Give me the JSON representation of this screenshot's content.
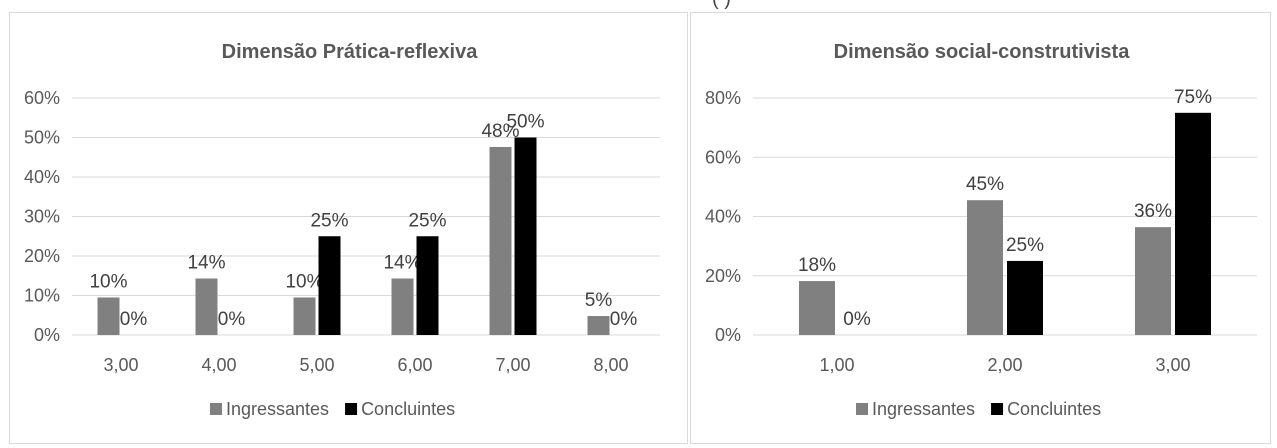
{
  "page": {
    "top_fragment_text": "(                )"
  },
  "colors": {
    "ingressantes": "#808080",
    "concluintes": "#000000",
    "grid": "#d9d9d9",
    "text": "#595959"
  },
  "chart_data": [
    {
      "type": "bar",
      "title": "Dimensão Prática-reflexiva",
      "categories": [
        "3,00",
        "4,00",
        "5,00",
        "6,00",
        "7,00",
        "8,00"
      ],
      "ylim": [
        0,
        60
      ],
      "yticks": [
        "0%",
        "10%",
        "20%",
        "30%",
        "40%",
        "50%",
        "60%"
      ],
      "ytick_values": [
        0,
        10,
        20,
        30,
        40,
        50,
        60
      ],
      "legend_position": "bottom",
      "series": [
        {
          "name": "Ingressantes",
          "values": [
            9.5,
            14.3,
            9.5,
            14.3,
            47.6,
            4.8
          ],
          "labels": [
            "10%",
            "14%",
            "10%",
            "14%",
            "48%",
            "5%"
          ]
        },
        {
          "name": "Concluintes",
          "values": [
            0,
            0,
            25,
            25,
            50,
            0
          ],
          "labels": [
            "0%",
            "0%",
            "25%",
            "25%",
            "50%",
            "0%"
          ]
        }
      ]
    },
    {
      "type": "bar",
      "title": "Dimensão social-construtivista",
      "categories": [
        "1,00",
        "2,00",
        "3,00"
      ],
      "ylim": [
        0,
        80
      ],
      "yticks": [
        "0%",
        "20%",
        "40%",
        "60%",
        "80%"
      ],
      "ytick_values": [
        0,
        20,
        40,
        60,
        80
      ],
      "legend_position": "bottom",
      "series": [
        {
          "name": "Ingressantes",
          "values": [
            18.2,
            45.5,
            36.4
          ],
          "labels": [
            "18%",
            "45%",
            "36%"
          ]
        },
        {
          "name": "Concluintes",
          "values": [
            0,
            25,
            75
          ],
          "labels": [
            "0%",
            "25%",
            "75%"
          ]
        }
      ]
    }
  ]
}
